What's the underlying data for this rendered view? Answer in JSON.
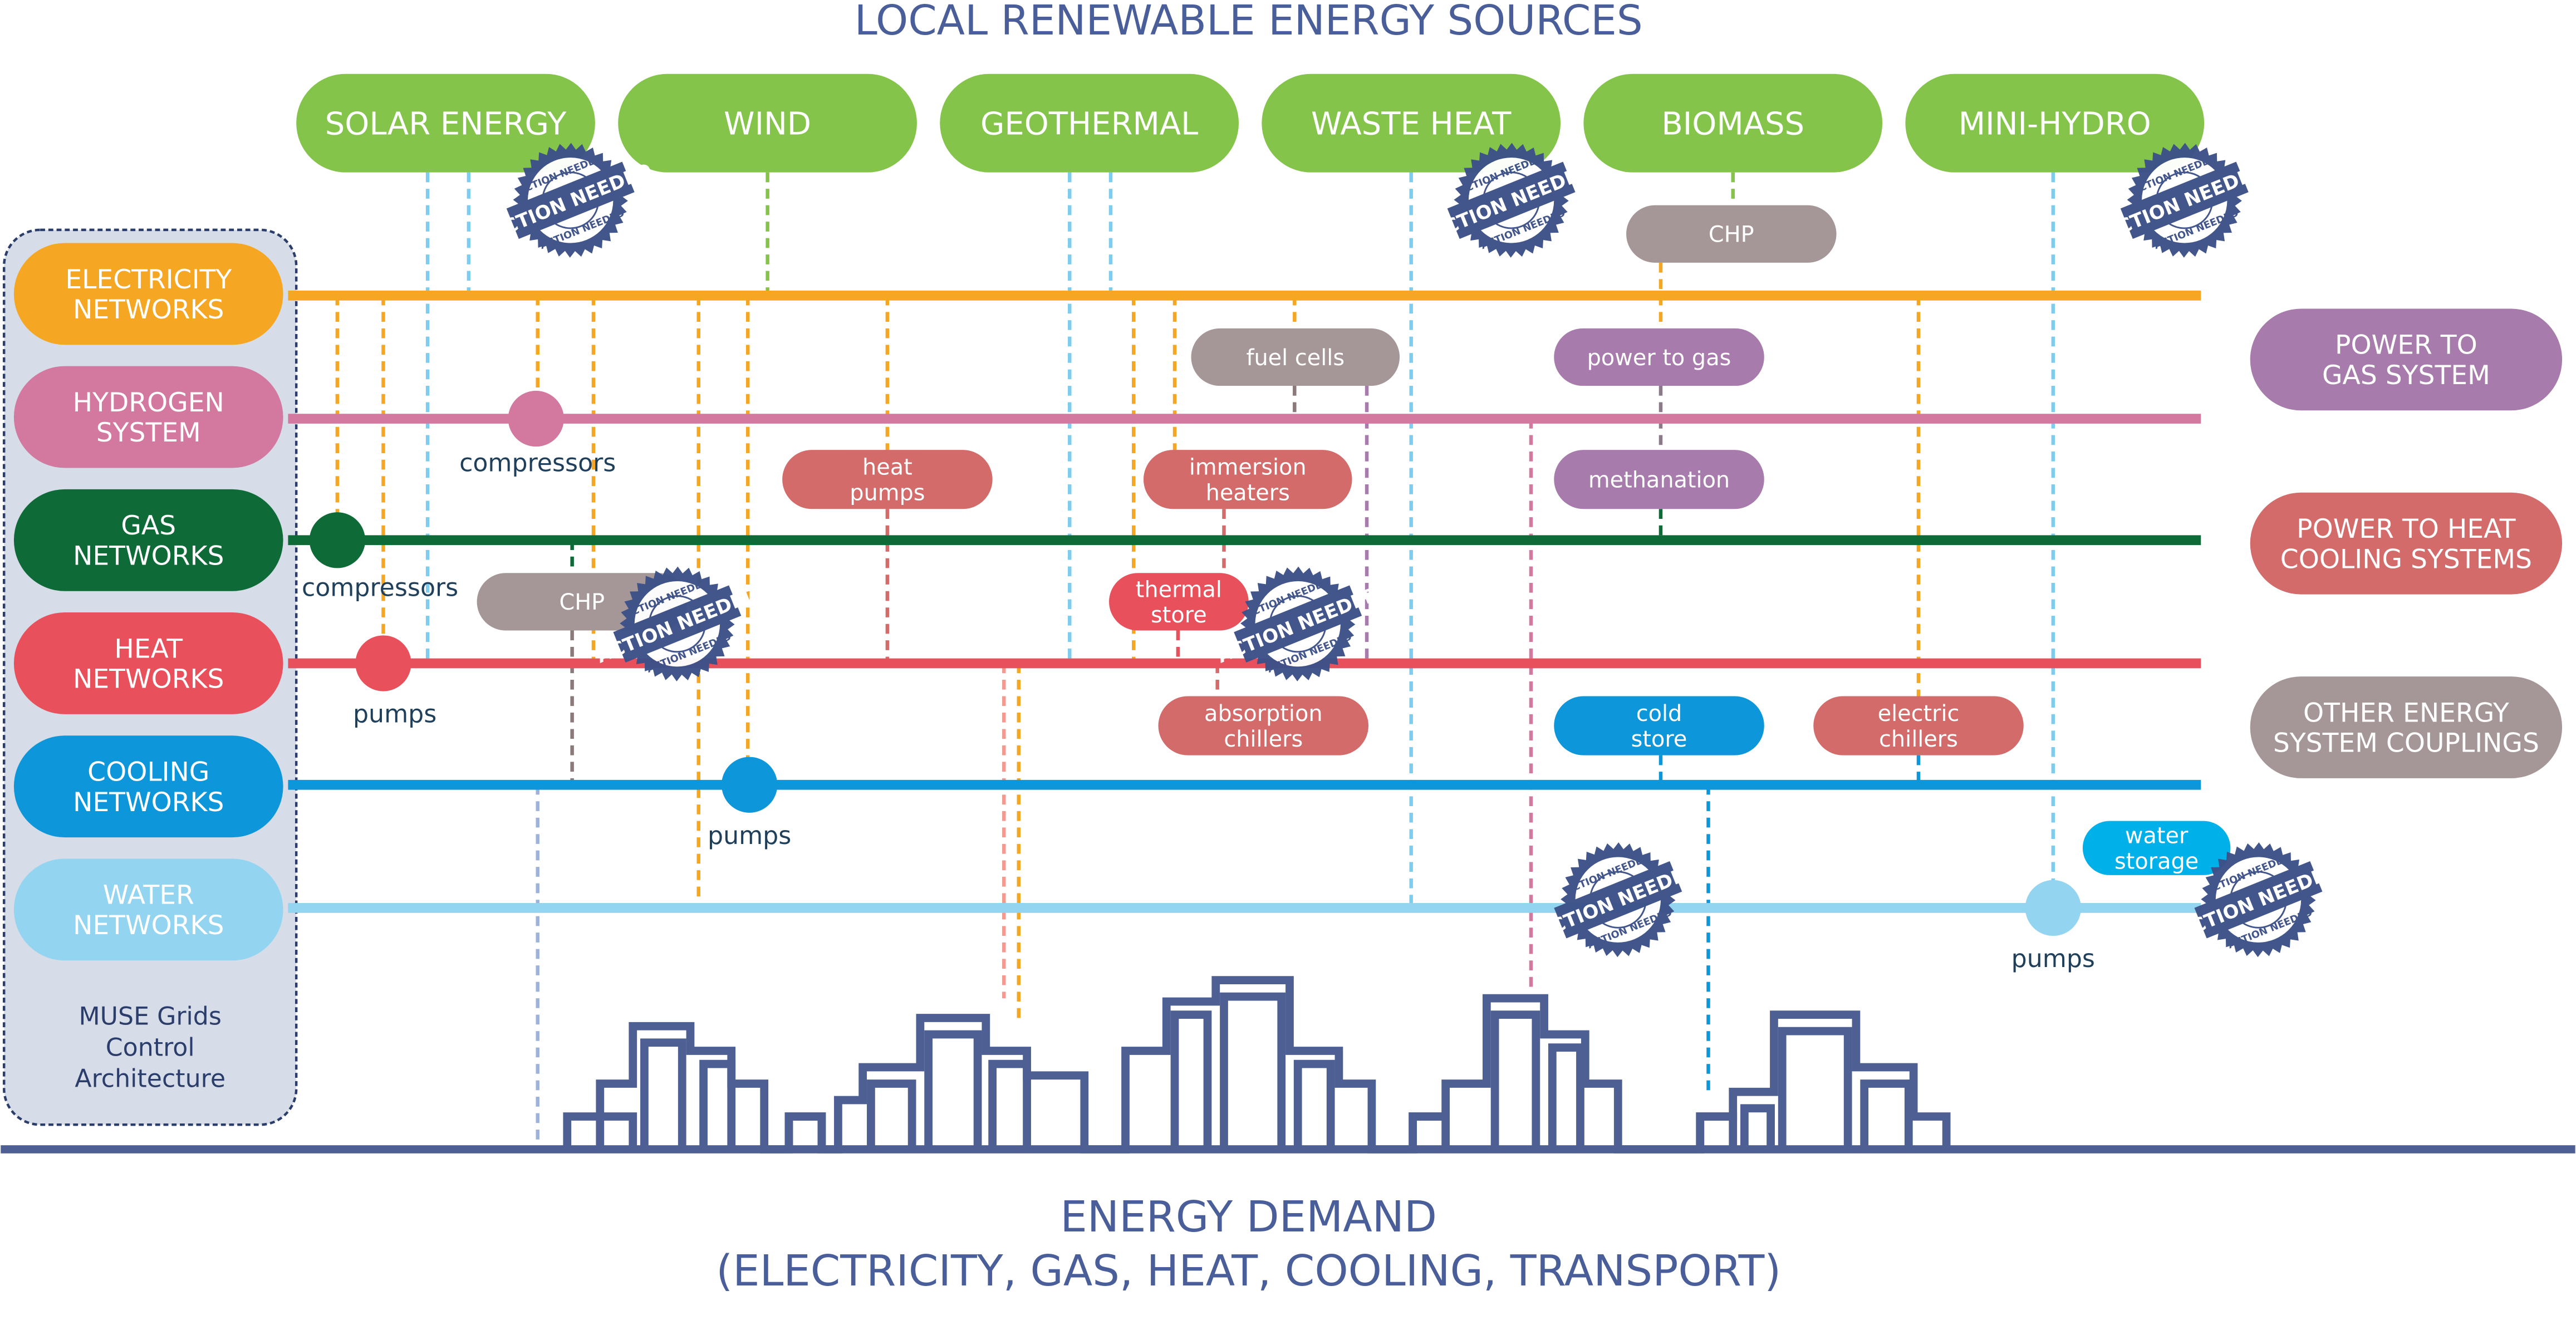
{
  "title": "LOCAL RENEWABLE ENERGY SOURCES",
  "footer": {
    "line1": "ENERGY DEMAND",
    "line2": "(ELECTRICITY, GAS, HEAT, COOLING, TRANSPORT)"
  },
  "colors": {
    "title": "#4a5f9a",
    "source": "#84c44a",
    "gray": "#a59797",
    "purple": "#a77bab",
    "salmon": "#d46b6b",
    "city": "#4e5f94",
    "panel": "#d6dde8",
    "stamp": "#3c5189"
  },
  "sources": [
    "SOLAR ENERGY",
    "WIND",
    "GEOTHERMAL",
    "WASTE HEAT",
    "BIOMASS",
    "MINI-HYDRO"
  ],
  "networks": [
    {
      "lines": [
        "ELECTRICITY",
        "NETWORKS"
      ],
      "color": "#f5a623"
    },
    {
      "lines": [
        "HYDROGEN",
        "SYSTEM"
      ],
      "color": "#d3789f"
    },
    {
      "lines": [
        "GAS",
        "NETWORKS"
      ],
      "color": "#0e6b38"
    },
    {
      "lines": [
        "HEAT",
        "NETWORKS"
      ],
      "color": "#e8505b"
    },
    {
      "lines": [
        "COOLING",
        "NETWORKS"
      ],
      "color": "#0d96d9"
    },
    {
      "lines": [
        "WATER",
        "NETWORKS"
      ],
      "color": "#93d4f0"
    }
  ],
  "panel_caption": [
    "MUSE Grids",
    "Control",
    "Architecture"
  ],
  "couplings": [
    {
      "lines": [
        "POWER TO",
        "GAS SYSTEM"
      ],
      "color": "#a77bab"
    },
    {
      "lines": [
        "POWER TO HEAT",
        "COOLING SYSTEMS"
      ],
      "color": "#d46b6b"
    },
    {
      "lines": [
        "OTHER ENERGY",
        "SYSTEM COUPLINGS"
      ],
      "color": "#a59797"
    }
  ],
  "components": [
    {
      "lines": [
        "CHP"
      ],
      "color": "#a59797"
    },
    {
      "lines": [
        "fuel cells"
      ],
      "color": "#a59797"
    },
    {
      "lines": [
        "power to gas"
      ],
      "color": "#a77bab"
    },
    {
      "lines": [
        "heat",
        "pumps"
      ],
      "color": "#d46b6b"
    },
    {
      "lines": [
        "immersion",
        "heaters"
      ],
      "color": "#d46b6b"
    },
    {
      "lines": [
        "methanation"
      ],
      "color": "#a77bab"
    },
    {
      "lines": [
        "CHP"
      ],
      "color": "#a59797"
    },
    {
      "lines": [
        "thermal",
        "store"
      ],
      "color": "#e8505b"
    },
    {
      "lines": [
        "absorption",
        "chillers"
      ],
      "color": "#d46b6b"
    },
    {
      "lines": [
        "cold",
        "store"
      ],
      "color": "#0d96d9"
    },
    {
      "lines": [
        "electric",
        "chillers"
      ],
      "color": "#d46b6b"
    },
    {
      "lines": [
        "water",
        "storage"
      ],
      "color": "#00b0e8"
    }
  ],
  "nodes": [
    {
      "label": "compressors",
      "color": "#d3789f"
    },
    {
      "label": "compressors",
      "color": "#0e6b38"
    },
    {
      "label": "pumps",
      "color": "#e8505b"
    },
    {
      "label": "pumps",
      "color": "#0d96d9"
    },
    {
      "label": "pumps",
      "color": "#93d4f0"
    }
  ],
  "stamp": {
    "label": "ACTION NEEDED",
    "count": 7
  }
}
